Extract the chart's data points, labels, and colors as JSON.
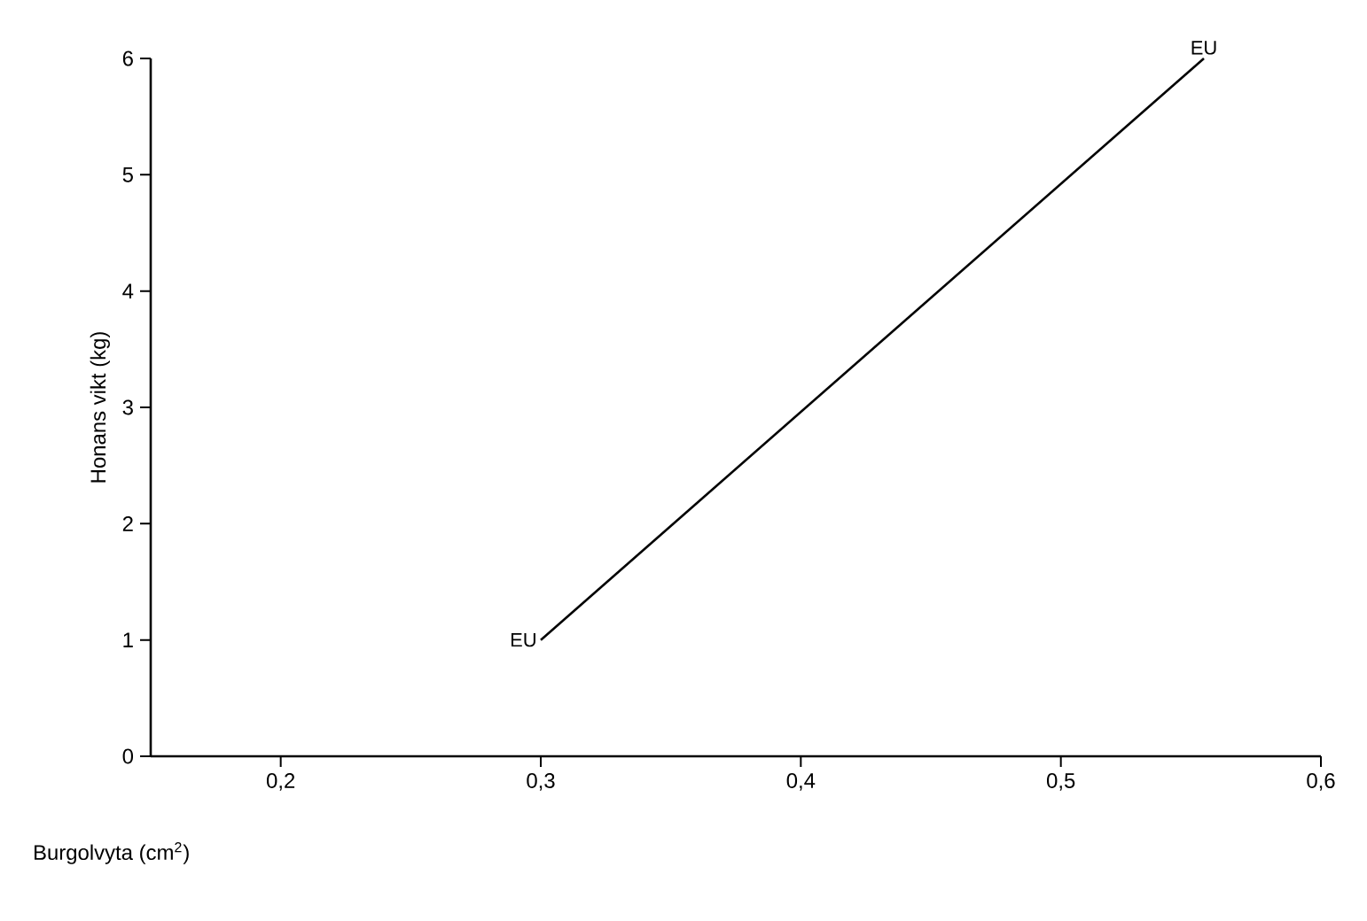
{
  "chart_data": {
    "type": "line",
    "xlabel": "Burgolvyta (cm$^{2}$)",
    "ylabel": "Honans vikt (kg)",
    "x": [
      0.3,
      0.555
    ],
    "series": [
      {
        "color": "#000000",
        "values": [
          1,
          6
        ]
      }
    ],
    "xlim": [
      0.15,
      0.6
    ],
    "ylim": [
      0,
      6
    ],
    "xticks": [
      {
        "value": 0.2,
        "label": "0,2"
      },
      {
        "value": 0.3,
        "label": "0,3"
      },
      {
        "value": 0.4,
        "label": "0,4"
      },
      {
        "value": 0.5,
        "label": "0,5"
      },
      {
        "value": 0.6,
        "label": "0,6"
      }
    ],
    "yticks": [
      0,
      1,
      2,
      3,
      4,
      5,
      6
    ],
    "annotations": [
      {
        "text": "EU",
        "x": 0.3,
        "y": 1
      },
      {
        "text": "EU",
        "x": 0.555,
        "y": 6
      }
    ],
    "grid": false,
    "marker": "none",
    "line_style": "solid"
  }
}
